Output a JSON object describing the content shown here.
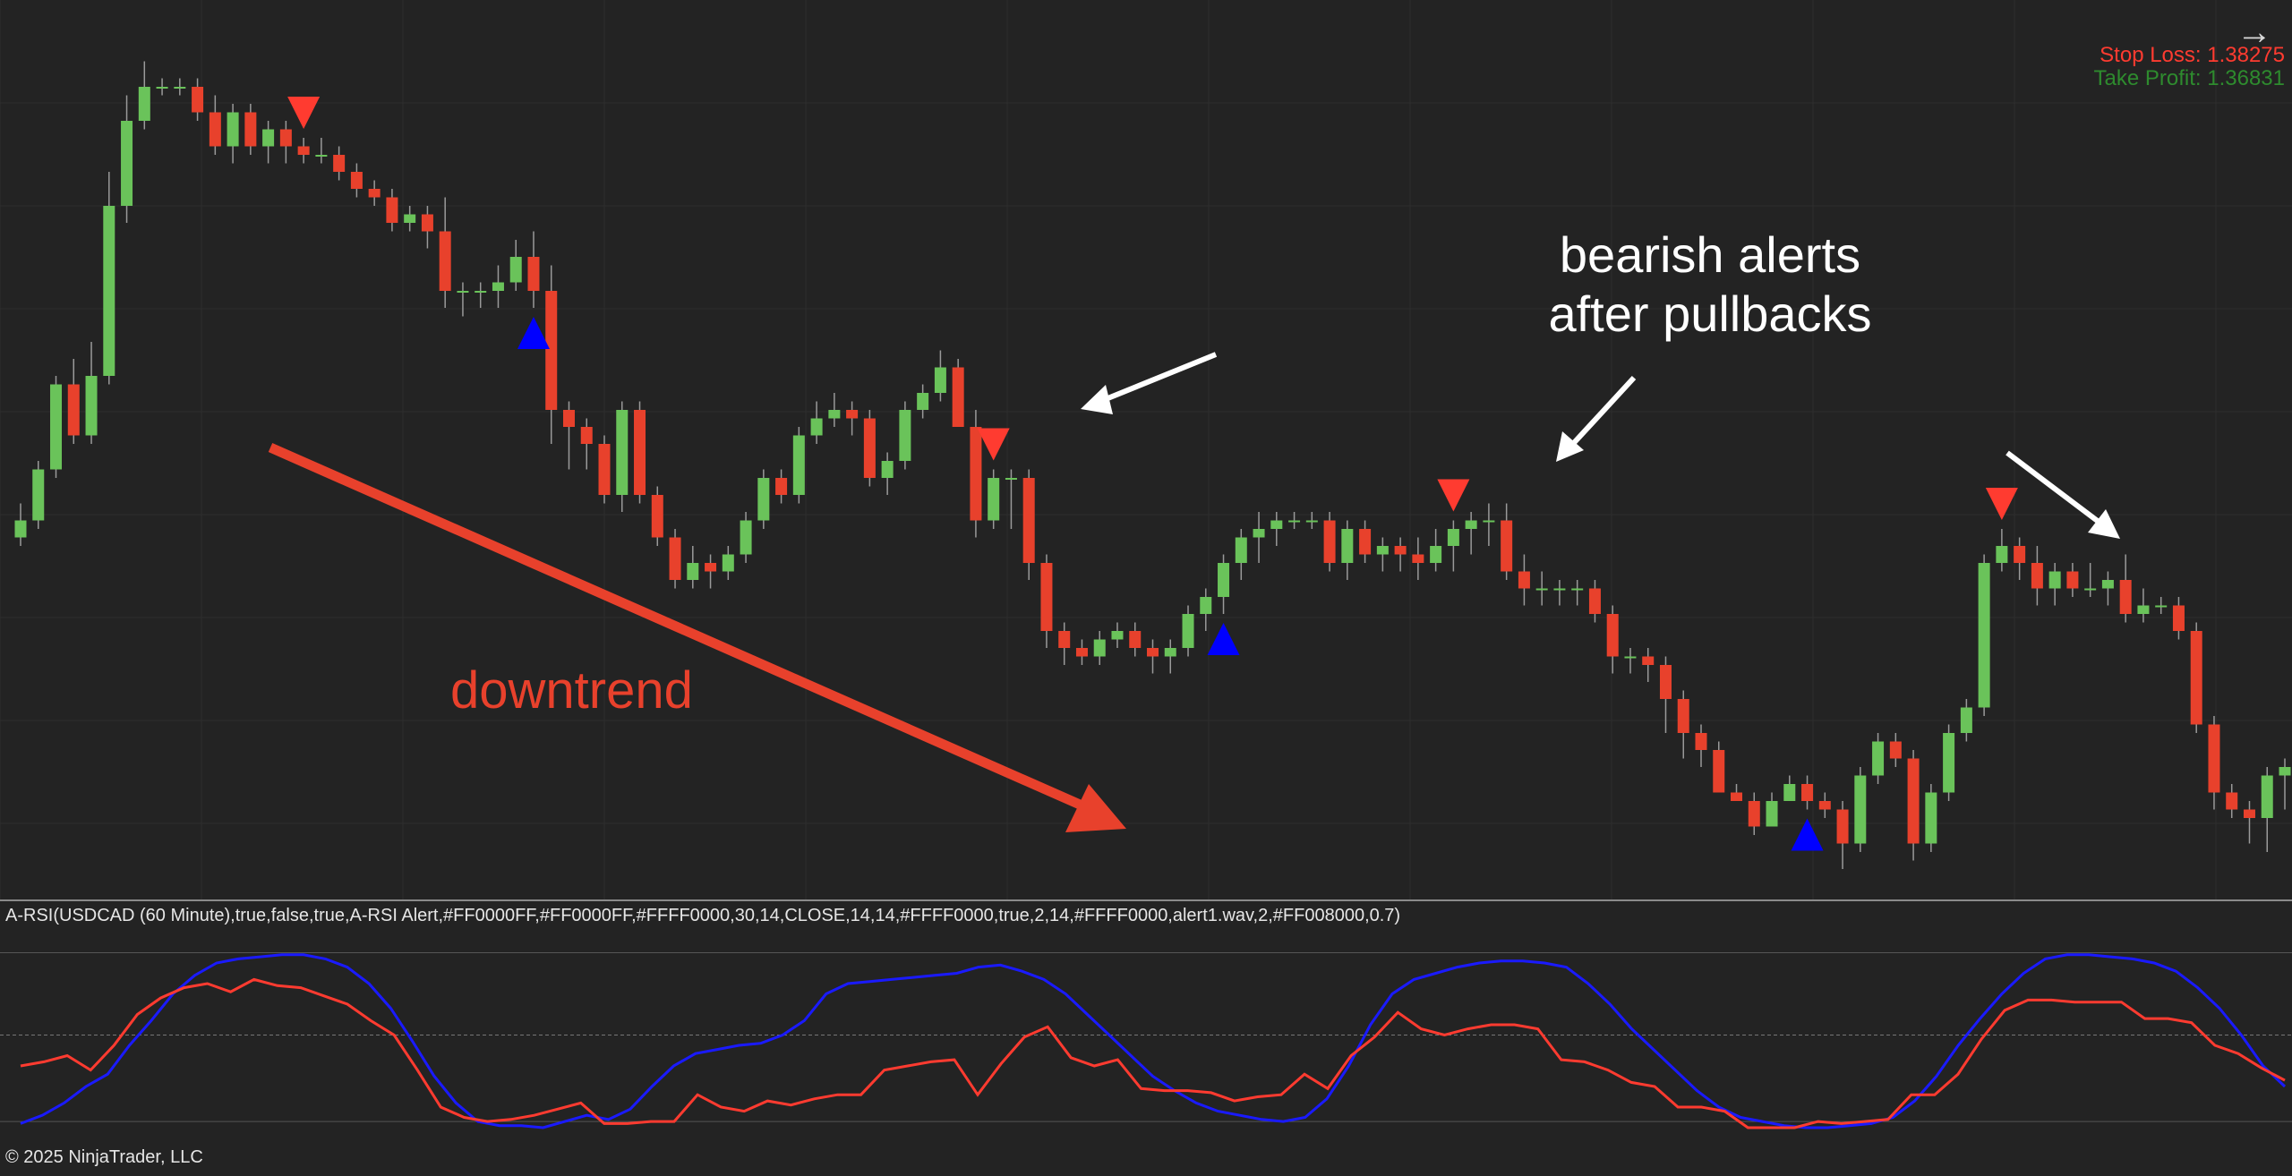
{
  "window": {
    "nav_icon": "arrow-right-icon",
    "nav_glyph": "→"
  },
  "trade": {
    "stop_loss": "Stop Loss: 1.38275",
    "take_profit": "Take Profit: 1.36831",
    "stop_loss_color": "#ff3b30",
    "take_profit_color": "#2e8b2e"
  },
  "annotations": {
    "bearish_line1": "bearish alerts",
    "bearish_line2": "after pullbacks",
    "downtrend": "downtrend",
    "downtrend_color": "#e8412c"
  },
  "indicator": {
    "label": "A-RSI(USDCAD (60 Minute),true,false,true,A-RSI Alert,#FF0000FF,#FF0000FF,#FFFF0000,30,14,CLOSE,14,14,#FFFF0000,true,2,14,#FFFF0000,alert1.wav,2,#FF008000,0.7)",
    "fast_color": "#ff3b30",
    "slow_color": "#1a1aff",
    "fast": [
      30,
      32,
      35,
      28,
      40,
      55,
      63,
      68,
      70,
      66,
      72,
      69,
      68,
      64,
      60,
      52,
      45,
      28,
      10,
      5,
      3,
      4,
      6,
      9,
      12,
      2,
      2,
      3,
      3,
      16,
      10,
      8,
      13,
      11,
      14,
      16,
      16,
      28,
      30,
      32,
      33,
      16,
      31,
      44,
      49,
      34,
      30,
      33,
      19,
      18,
      18,
      17,
      13,
      15,
      16,
      26,
      19,
      35,
      44,
      56,
      48,
      45,
      48,
      50,
      50,
      48,
      33,
      32,
      28,
      22,
      20,
      10,
      10,
      8,
      0,
      0,
      0,
      3,
      2,
      3,
      4,
      16,
      16,
      26,
      43,
      57,
      62,
      62,
      61,
      61,
      61,
      53,
      53,
      51,
      40,
      36,
      29,
      23
    ],
    "slow": [
      2,
      6,
      12,
      20,
      26,
      40,
      52,
      65,
      74,
      80,
      82,
      83,
      84,
      84,
      82,
      78,
      70,
      58,
      42,
      25,
      12,
      3,
      1,
      1,
      0,
      3,
      6,
      4,
      9,
      20,
      30,
      36,
      38,
      40,
      41,
      45,
      52,
      65,
      70,
      71,
      72,
      73,
      74,
      75,
      78,
      79,
      76,
      72,
      65,
      55,
      45,
      35,
      25,
      18,
      12,
      8,
      6,
      4,
      3,
      5,
      14,
      30,
      50,
      65,
      72,
      75,
      78,
      80,
      81,
      81,
      80,
      78,
      70,
      60,
      48,
      38,
      28,
      18,
      10,
      5,
      3,
      1,
      0,
      0,
      1,
      2,
      5,
      13,
      25,
      40,
      53,
      65,
      75,
      82,
      84,
      84,
      83,
      82,
      80,
      76,
      68,
      58,
      45,
      30,
      20
    ]
  },
  "signals": {
    "buy_color": "#0000ff",
    "sell_color": "#ff3b30",
    "buy_shape": "triangle-up",
    "sell_shape": "triangle-down"
  },
  "candles": {
    "bull_color": "#6ac35a",
    "bear_color": "#e8412c",
    "ohlc": [
      [
        82,
        86,
        90,
        80
      ],
      [
        86,
        98,
        100,
        84
      ],
      [
        98,
        118,
        120,
        96
      ],
      [
        118,
        106,
        124,
        104
      ],
      [
        106,
        120,
        128,
        104
      ],
      [
        120,
        160,
        168,
        118
      ],
      [
        160,
        180,
        186,
        156
      ],
      [
        180,
        188,
        194,
        178
      ],
      [
        188,
        188,
        190,
        186
      ],
      [
        188,
        188,
        190,
        186
      ],
      [
        188,
        182,
        190,
        180
      ],
      [
        182,
        174,
        186,
        172
      ],
      [
        174,
        182,
        184,
        170
      ],
      [
        182,
        174,
        184,
        172
      ],
      [
        174,
        178,
        180,
        170
      ],
      [
        178,
        174,
        180,
        170
      ],
      [
        174,
        172,
        176,
        170
      ],
      [
        172,
        172,
        176,
        170
      ],
      [
        172,
        168,
        174,
        166
      ],
      [
        168,
        164,
        170,
        162
      ],
      [
        164,
        162,
        166,
        160
      ],
      [
        162,
        156,
        164,
        154
      ],
      [
        156,
        158,
        160,
        154
      ],
      [
        158,
        154,
        160,
        150
      ],
      [
        154,
        140,
        162,
        136
      ],
      [
        140,
        140,
        142,
        134
      ],
      [
        140,
        140,
        142,
        136
      ],
      [
        140,
        142,
        146,
        136
      ],
      [
        142,
        148,
        152,
        140
      ],
      [
        148,
        140,
        154,
        136
      ],
      [
        140,
        112,
        146,
        104
      ],
      [
        112,
        108,
        114,
        98
      ],
      [
        108,
        104,
        110,
        98
      ],
      [
        104,
        92,
        106,
        90
      ],
      [
        92,
        112,
        114,
        88
      ],
      [
        112,
        92,
        114,
        90
      ],
      [
        92,
        82,
        94,
        80
      ],
      [
        82,
        72,
        84,
        70
      ],
      [
        72,
        76,
        80,
        70
      ],
      [
        76,
        74,
        78,
        70
      ],
      [
        74,
        78,
        80,
        72
      ],
      [
        78,
        86,
        88,
        76
      ],
      [
        86,
        96,
        98,
        84
      ],
      [
        96,
        92,
        98,
        90
      ],
      [
        92,
        106,
        108,
        90
      ],
      [
        106,
        110,
        114,
        104
      ],
      [
        110,
        112,
        116,
        108
      ],
      [
        112,
        110,
        114,
        106
      ],
      [
        110,
        96,
        112,
        94
      ],
      [
        96,
        100,
        102,
        92
      ],
      [
        100,
        112,
        114,
        98
      ],
      [
        112,
        116,
        118,
        110
      ],
      [
        116,
        122,
        126,
        114
      ],
      [
        122,
        108,
        124,
        108
      ],
      [
        108,
        86,
        112,
        82
      ],
      [
        86,
        96,
        98,
        84
      ],
      [
        96,
        96,
        98,
        84
      ],
      [
        96,
        76,
        98,
        72
      ],
      [
        76,
        60,
        78,
        56
      ],
      [
        60,
        56,
        62,
        52
      ],
      [
        56,
        54,
        58,
        52
      ],
      [
        54,
        58,
        60,
        52
      ],
      [
        58,
        60,
        62,
        56
      ],
      [
        60,
        56,
        62,
        54
      ],
      [
        56,
        54,
        58,
        50
      ],
      [
        54,
        56,
        58,
        50
      ],
      [
        56,
        64,
        66,
        54
      ],
      [
        64,
        68,
        70,
        60
      ],
      [
        68,
        76,
        78,
        64
      ],
      [
        76,
        82,
        84,
        72
      ],
      [
        82,
        84,
        88,
        76
      ],
      [
        84,
        86,
        88,
        80
      ],
      [
        86,
        86,
        88,
        84
      ],
      [
        86,
        86,
        88,
        84
      ],
      [
        86,
        76,
        88,
        74
      ],
      [
        76,
        84,
        86,
        72
      ],
      [
        84,
        78,
        86,
        76
      ],
      [
        78,
        80,
        82,
        74
      ],
      [
        80,
        78,
        82,
        74
      ],
      [
        78,
        76,
        82,
        72
      ],
      [
        76,
        80,
        84,
        74
      ],
      [
        80,
        84,
        86,
        74
      ],
      [
        84,
        86,
        88,
        78
      ],
      [
        86,
        86,
        90,
        80
      ],
      [
        86,
        74,
        90,
        72
      ],
      [
        74,
        70,
        78,
        66
      ],
      [
        70,
        70,
        74,
        66
      ],
      [
        70,
        70,
        72,
        66
      ],
      [
        70,
        70,
        72,
        66
      ],
      [
        70,
        64,
        72,
        62
      ],
      [
        64,
        54,
        66,
        50
      ],
      [
        54,
        54,
        56,
        50
      ],
      [
        54,
        52,
        56,
        48
      ],
      [
        52,
        44,
        54,
        36
      ],
      [
        44,
        36,
        46,
        30
      ],
      [
        36,
        32,
        38,
        28
      ],
      [
        32,
        22,
        34,
        22
      ],
      [
        22,
        20,
        24,
        20
      ],
      [
        20,
        14,
        22,
        12
      ],
      [
        14,
        20,
        22,
        14
      ],
      [
        20,
        24,
        26,
        20
      ],
      [
        24,
        20,
        26,
        18
      ],
      [
        20,
        18,
        22,
        16
      ],
      [
        18,
        10,
        20,
        4
      ],
      [
        10,
        26,
        28,
        8
      ],
      [
        26,
        34,
        36,
        24
      ],
      [
        34,
        30,
        36,
        28
      ],
      [
        30,
        10,
        32,
        6
      ],
      [
        10,
        22,
        24,
        8
      ],
      [
        22,
        36,
        38,
        20
      ],
      [
        36,
        42,
        44,
        34
      ],
      [
        42,
        76,
        78,
        40
      ],
      [
        76,
        80,
        84,
        74
      ],
      [
        80,
        76,
        82,
        72
      ],
      [
        76,
        70,
        80,
        66
      ],
      [
        70,
        74,
        76,
        66
      ],
      [
        74,
        70,
        76,
        68
      ],
      [
        70,
        70,
        76,
        68
      ],
      [
        70,
        72,
        74,
        66
      ],
      [
        72,
        64,
        78,
        62
      ],
      [
        64,
        66,
        70,
        62
      ],
      [
        66,
        66,
        68,
        64
      ],
      [
        66,
        60,
        68,
        58
      ],
      [
        60,
        38,
        62,
        36
      ],
      [
        38,
        22,
        40,
        18
      ],
      [
        22,
        18,
        24,
        16
      ],
      [
        18,
        16,
        20,
        10
      ],
      [
        16,
        26,
        28,
        8
      ],
      [
        26,
        28,
        30,
        18
      ]
    ]
  }
}
